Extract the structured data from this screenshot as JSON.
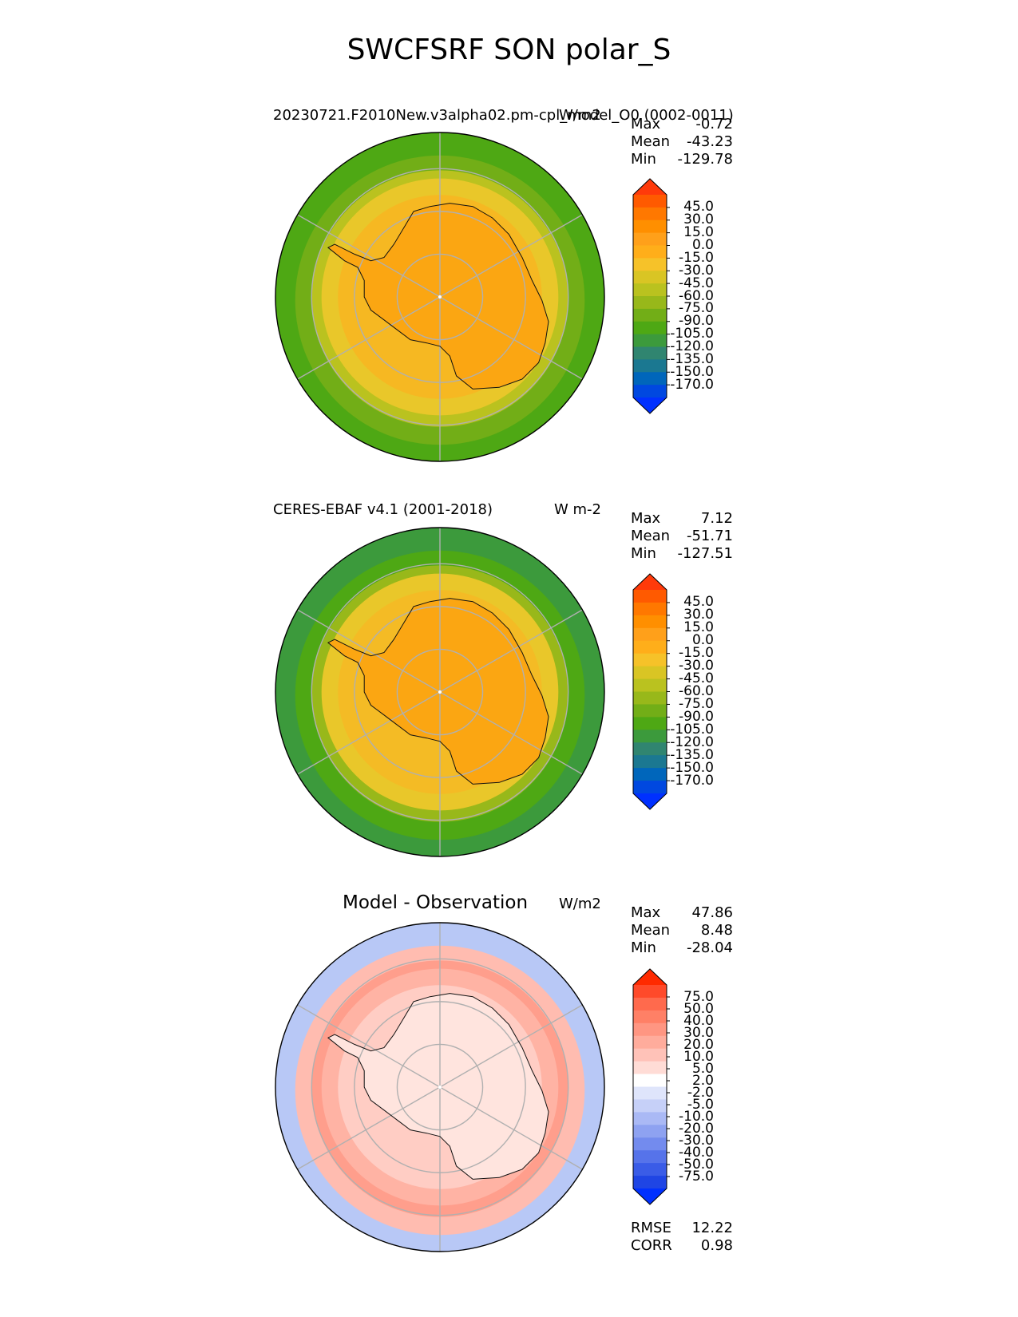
{
  "figure": {
    "title": "SWCFSRF SON polar_S"
  },
  "chart_data": [
    {
      "type": "polar_contour_map",
      "panel": "test",
      "title": "20230721.F2010New.v3alpha02.pm-cpl_model_O0 (0002-0011)",
      "units": "W/m2",
      "stats": {
        "max_label": "Max",
        "max": "-0.72",
        "mean_label": "Mean",
        "mean": "-43.23",
        "min_label": "Min",
        "min": "-129.78"
      },
      "colorbar": {
        "ticks": [
          "45.0",
          "30.0",
          "15.0",
          "0.0",
          "-15.0",
          "-30.0",
          "-45.0",
          "-60.0",
          "-75.0",
          "-90.0",
          "-105.0",
          "-120.0",
          "-135.0",
          "-150.0",
          "-170.0"
        ],
        "colors": [
          "#ff3a0a",
          "#ff5a00",
          "#ff7800",
          "#ff8f00",
          "#ffa01a",
          "#ffae1a",
          "#f6c229",
          "#d9c524",
          "#bac21f",
          "#98b81a",
          "#72ae17",
          "#4ea814",
          "#3c9a3c",
          "#308570",
          "#1b7891",
          "#0066bb",
          "#0048e0",
          "#0030ff"
        ]
      },
      "rings": {
        "outer": "#4ea814",
        "edge": "#72ae17",
        "mid": "#bac21f",
        "band": "#e9c72a",
        "inner": "#f6b822",
        "continent": "#fba612"
      }
    },
    {
      "type": "polar_contour_map",
      "panel": "reference",
      "title": "CERES-EBAF v4.1 (2001-2018)",
      "units": "W m-2",
      "stats": {
        "max_label": "Max",
        "max": "7.12",
        "mean_label": "Mean",
        "mean": "-51.71",
        "min_label": "Min",
        "min": "-127.51"
      },
      "colorbar": {
        "ticks": [
          "45.0",
          "30.0",
          "15.0",
          "0.0",
          "-15.0",
          "-30.0",
          "-45.0",
          "-60.0",
          "-75.0",
          "-90.0",
          "-105.0",
          "-120.0",
          "-135.0",
          "-150.0",
          "-170.0"
        ],
        "colors": [
          "#ff3a0a",
          "#ff5a00",
          "#ff7800",
          "#ff8f00",
          "#ffa01a",
          "#ffae1a",
          "#f6c229",
          "#d9c524",
          "#bac21f",
          "#98b81a",
          "#72ae17",
          "#4ea814",
          "#3c9a3c",
          "#308570",
          "#1b7891",
          "#0066bb",
          "#0048e0",
          "#0030ff"
        ]
      },
      "rings": {
        "outer": "#3c9a3c",
        "edge": "#4ea814",
        "mid": "#98b81a",
        "band": "#e9c72a",
        "inner": "#f4bb25",
        "continent": "#fba612"
      }
    },
    {
      "type": "polar_contour_map",
      "panel": "difference",
      "title": "Model - Observation",
      "units": "W/m2",
      "stats": {
        "max_label": "Max",
        "max": "47.86",
        "mean_label": "Mean",
        "mean": "8.48",
        "min_label": "Min",
        "min": "-28.04"
      },
      "colorbar": {
        "ticks": [
          "75.0",
          "50.0",
          "40.0",
          "30.0",
          "20.0",
          "10.0",
          "5.0",
          "2.0",
          "-2.0",
          "-5.0",
          "-10.0",
          "-20.0",
          "-30.0",
          "-40.0",
          "-50.0",
          "-75.0"
        ],
        "colors": [
          "#ff2a00",
          "#ff4a2a",
          "#ff6a4d",
          "#ff8066",
          "#ff9682",
          "#ffac9c",
          "#ffc2b8",
          "#ffdcd6",
          "#ffffff",
          "#dfe5fb",
          "#c6d0f8",
          "#aab9f5",
          "#8ea2f1",
          "#738bee",
          "#5673ea",
          "#3a5ce7",
          "#1f45e4",
          "#0030ff"
        ]
      },
      "rings": {
        "outer": "#b8c8f6",
        "edge": "#ffbcb0",
        "mid": "#ff9e8c",
        "band": "#ffb3a4",
        "inner": "#ffcdc4",
        "continent": "#ffe4de"
      },
      "extra_stats": {
        "rmse_label": "RMSE",
        "rmse": "12.22",
        "corr_label": "CORR",
        "corr": "0.98"
      }
    }
  ]
}
